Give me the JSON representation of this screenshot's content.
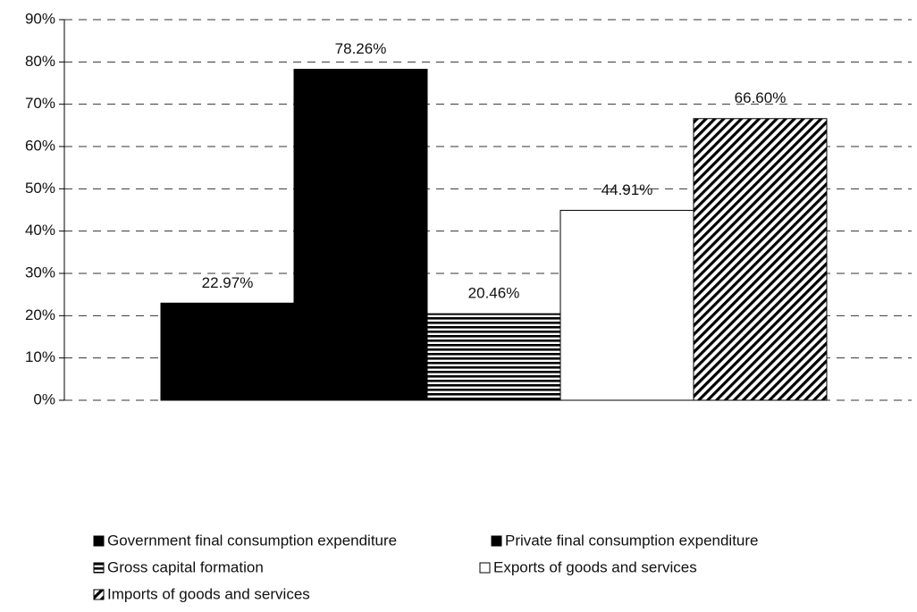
{
  "chart_data": {
    "type": "bar",
    "ylim": [
      0,
      90
    ],
    "yticks": [
      {
        "value": 0,
        "label": "0%"
      },
      {
        "value": 10,
        "label": "10%"
      },
      {
        "value": 20,
        "label": "20%"
      },
      {
        "value": 30,
        "label": "30%"
      },
      {
        "value": 40,
        "label": "40%"
      },
      {
        "value": 50,
        "label": "50%"
      },
      {
        "value": 60,
        "label": "60%"
      },
      {
        "value": 70,
        "label": "70%"
      },
      {
        "value": 80,
        "label": "80%"
      },
      {
        "value": 90,
        "label": "90%"
      }
    ],
    "grid": true,
    "legend": "bottom",
    "series": [
      {
        "name": "Government final consumption expenditure",
        "color": "#000000",
        "pattern": "solid",
        "values": [
          22.97
        ],
        "value_labels": [
          "22.97%"
        ]
      },
      {
        "name": "Private final consumption expenditure",
        "color": "#000000",
        "pattern": "solid",
        "values": [
          78.26
        ],
        "value_labels": [
          "78.26%"
        ]
      },
      {
        "name": "Gross capital formation",
        "color": "#000000",
        "pattern": "horizontal",
        "values": [
          20.46
        ],
        "value_labels": [
          "20.46%"
        ]
      },
      {
        "name": "Exports of goods and services",
        "color": "#ffffff",
        "pattern": "solid",
        "values": [
          44.91
        ],
        "value_labels": [
          "44.91%"
        ]
      },
      {
        "name": "Imports of goods and services",
        "color": "#000000",
        "pattern": "diagonal",
        "values": [
          66.6
        ],
        "value_labels": [
          "66.60%"
        ]
      }
    ]
  }
}
